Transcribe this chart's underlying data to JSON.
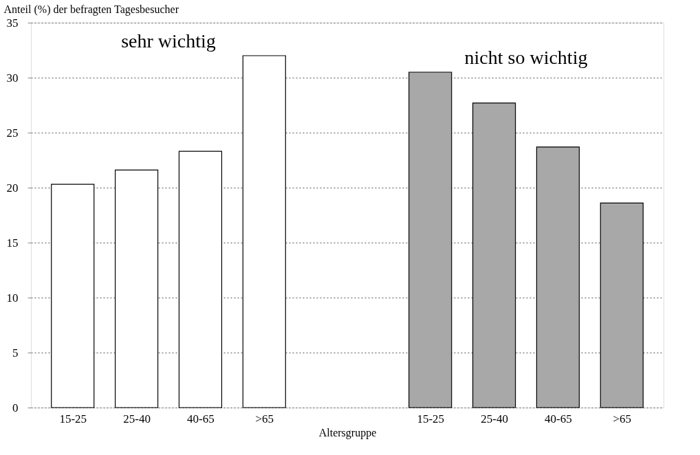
{
  "chart_data": {
    "type": "bar",
    "ylabel": "Anteil (%) der befragten Tagesbesucher",
    "xlabel": "Altersgruppe",
    "categories": [
      "15-25",
      "25-40",
      "40-65",
      ">65",
      "15-25",
      "25-40",
      "40-65",
      ">65"
    ],
    "series": [
      {
        "name": "sehr wichtig",
        "color": "#ffffff",
        "values": [
          20.3,
          21.6,
          23.3,
          32,
          null,
          null,
          null,
          null
        ]
      },
      {
        "name": "nicht so wichtig",
        "color": "#a8a8a8",
        "values": [
          null,
          null,
          null,
          null,
          30.5,
          27.7,
          23.7,
          18.6
        ]
      }
    ],
    "ylim": [
      0,
      35
    ],
    "yticks": [
      0,
      5,
      10,
      15,
      20,
      25,
      30,
      35
    ],
    "grid": "y",
    "legend": false
  }
}
